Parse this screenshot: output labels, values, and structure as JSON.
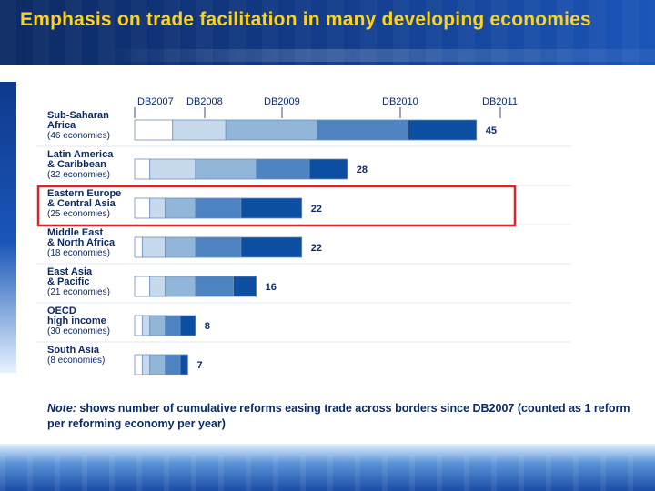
{
  "slide": {
    "title": "Emphasis on trade facilitation in many developing economies",
    "note_prefix": "Note:",
    "note_text": " shows number of cumulative reforms easing trade across borders since DB2007 (counted as 1 reform per reforming economy per year)"
  },
  "chart_data": {
    "type": "bar",
    "orientation": "horizontal-stacked",
    "title": "",
    "xlabel": "",
    "ylabel": "",
    "series": [
      {
        "name": "DB2007",
        "values": [
          5,
          2,
          2,
          1,
          2,
          1,
          1
        ]
      },
      {
        "name": "DB2008",
        "values": [
          7,
          6,
          2,
          3,
          2,
          1,
          1
        ]
      },
      {
        "name": "DB2009",
        "values": [
          12,
          8,
          4,
          4,
          4,
          2,
          2
        ]
      },
      {
        "name": "DB2010",
        "values": [
          12,
          7,
          6,
          6,
          5,
          2,
          2
        ]
      },
      {
        "name": "DB2011",
        "values": [
          9,
          5,
          8,
          8,
          3,
          2,
          1
        ]
      }
    ],
    "categories": [
      {
        "name": "Sub-Saharan Africa",
        "sub": "(46 economies)",
        "total": "45"
      },
      {
        "name": "Latin America & Caribbean",
        "sub": "(32 economies)",
        "total": "28"
      },
      {
        "name": "Eastern Europe & Central Asia",
        "sub": "(25 economies)",
        "total": "22",
        "highlighted": true
      },
      {
        "name": "Middle East & North Africa",
        "sub": "(18 economies)",
        "total": "22"
      },
      {
        "name": "East Asia & Pacific",
        "sub": "(21 economies)",
        "total": "16"
      },
      {
        "name": "OECD high income",
        "sub": "(30 economies)",
        "total": "8"
      },
      {
        "name": "South Asia",
        "sub": "(8 economies)",
        "total": "7"
      }
    ],
    "xlim": [
      0,
      45
    ],
    "grid": false,
    "legend": "top",
    "colors": {
      "DB2007": "#ffffff",
      "DB2008": "#c7d9ec",
      "DB2009": "#92b6da",
      "DB2010": "#4e83c1",
      "DB2011": "#0b4ea2",
      "highlight": "#d7262a",
      "label": "#0b2a66"
    }
  }
}
